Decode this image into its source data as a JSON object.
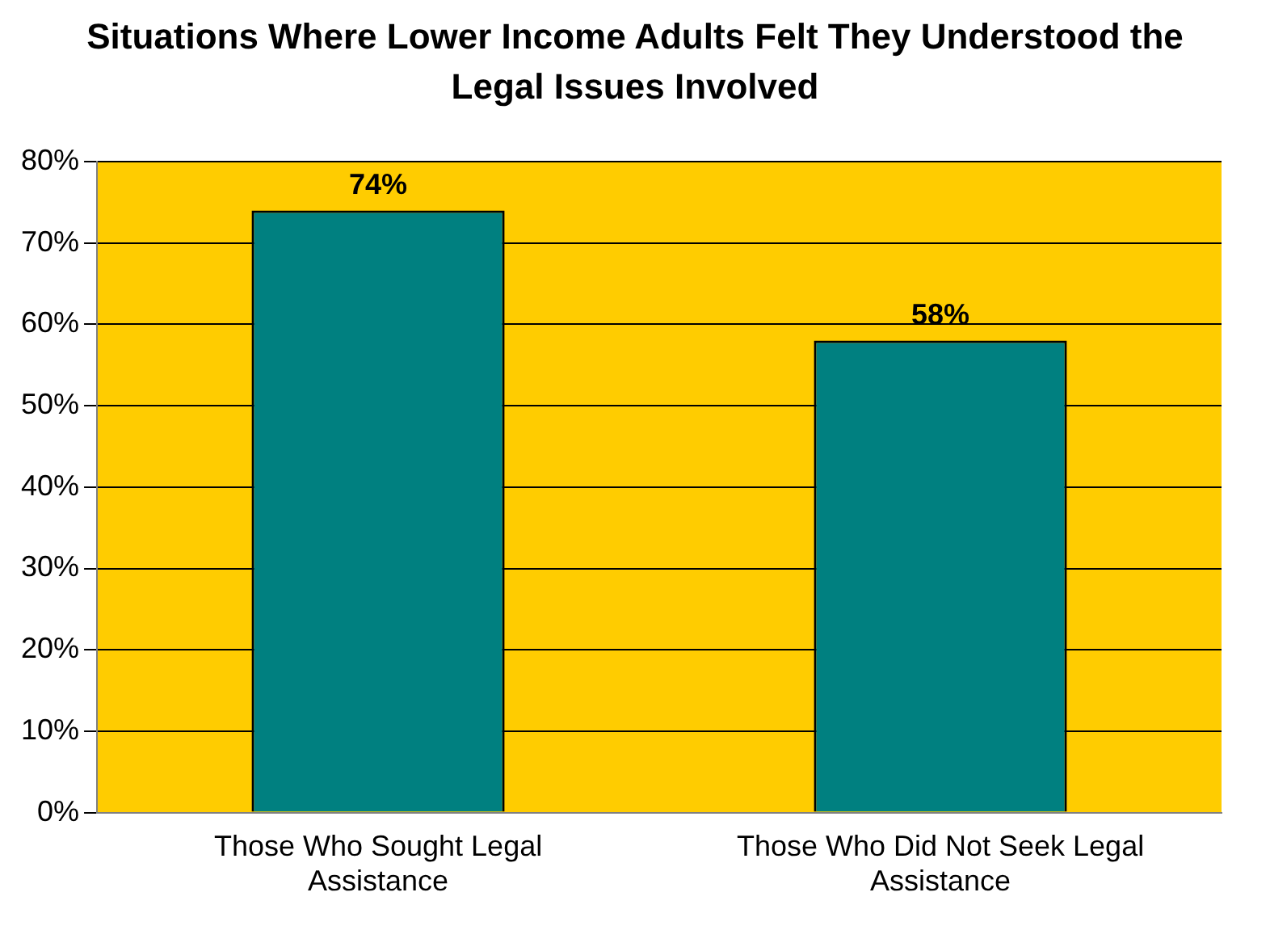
{
  "chart_data": {
    "type": "bar",
    "title": "Situations Where Lower Income Adults Felt They Understood the Legal Issues Involved",
    "categories": [
      [
        "Those Who Sought Legal",
        "Assistance"
      ],
      [
        "Those Who Did Not Seek Legal",
        "Assistance"
      ]
    ],
    "values": [
      74,
      58
    ],
    "color": "#008080",
    "value_labels": [
      "74%",
      "58%"
    ],
    "ylim": [
      0,
      80
    ],
    "yticks": [
      {
        "value": 0,
        "label": "0%"
      },
      {
        "value": 10,
        "label": "10%"
      },
      {
        "value": 20,
        "label": "20%"
      },
      {
        "value": 30,
        "label": "30%"
      },
      {
        "value": 40,
        "label": "40%"
      },
      {
        "value": 50,
        "label": "50%"
      },
      {
        "value": 60,
        "label": "60%"
      },
      {
        "value": 70,
        "label": "70%"
      },
      {
        "value": 80,
        "label": "80%"
      }
    ],
    "grid": "y",
    "legend": false
  }
}
